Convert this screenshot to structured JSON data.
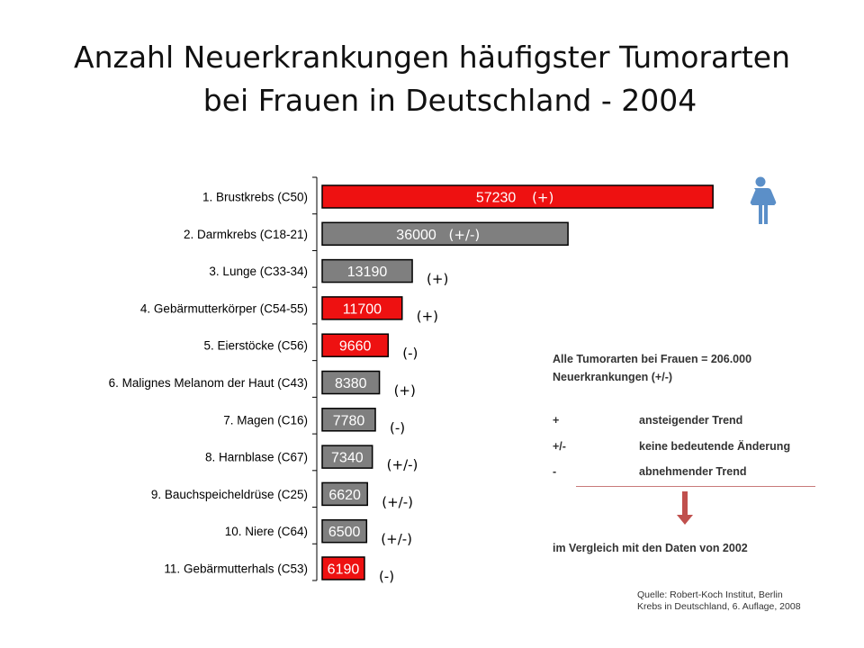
{
  "title": {
    "line1": "Anzahl Neuerkrankungen häufigster Tumorarten",
    "line2": "bei Frauen in Deutschland - 2004"
  },
  "colors": {
    "increase": "#ee1111",
    "neutral": "#7f7f7f",
    "decrease": "#ee1111",
    "bar_border": "#000000",
    "woman_icon": "#5b8fc8",
    "arrow": "#c0504d"
  },
  "icons": {
    "woman": "woman-icon",
    "arrow": "arrow-down-icon"
  },
  "chart_data": {
    "type": "bar",
    "orientation": "horizontal",
    "title": "Anzahl Neuerkrankungen häufigster Tumorarten bei Frauen in Deutschland - 2004",
    "categories": [
      "1. Brustkrebs (C50)",
      "2. Darmkrebs (C18-21)",
      "3. Lunge (C33-34)",
      "4. Gebärmutterkörper (C54-55)",
      "5. Eierstöcke (C56)",
      "6. Malignes Melanom der Haut (C43)",
      "7. Magen (C16)",
      "8. Harnblase (C67)",
      "9. Bauchspeicheldrüse (C25)",
      "10. Niere (C64)",
      "11. Gebärmutterhals (C53)"
    ],
    "values": [
      57230,
      36000,
      13190,
      11700,
      9660,
      8380,
      7780,
      7340,
      6620,
      6500,
      6190
    ],
    "value_labels": [
      "57230",
      "36000",
      "13190",
      "11700",
      "9660",
      "8380",
      "7780",
      "7340",
      "6620",
      "6500",
      "6190"
    ],
    "trends": [
      "(+)",
      "(+/-)",
      "(+)",
      "(+)",
      "(-)",
      "(+)",
      "(-)",
      "(+/-)",
      "(+/-)",
      "(+/-)",
      "(-)"
    ],
    "bar_colors": [
      "red",
      "gray",
      "gray",
      "red",
      "red",
      "gray",
      "gray",
      "gray",
      "gray",
      "gray",
      "red"
    ],
    "xlim": [
      0,
      58000
    ],
    "xlabel": "",
    "ylabel": "",
    "grid": false,
    "legend": "none"
  },
  "info": {
    "total_line1": "Alle  Tumorarten bei Frauen = 206.000",
    "total_line2": "Neuerkrankungen (+/-)",
    "legend": [
      {
        "symbol": "+",
        "text": "ansteigender Trend"
      },
      {
        "symbol": "+/-",
        "text": "keine bedeutende Änderung"
      },
      {
        "symbol": "-",
        "text": "abnehmender Trend"
      }
    ],
    "comparison": "im Vergleich mit den Daten von 2002"
  },
  "source": {
    "line1": "Quelle: Robert-Koch Institut, Berlin",
    "line2": "Krebs in Deutschland, 6. Auflage, 2008"
  }
}
